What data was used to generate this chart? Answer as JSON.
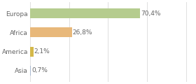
{
  "categories": [
    "Europa",
    "Africa",
    "America",
    "Asia"
  ],
  "values": [
    70.4,
    26.8,
    2.1,
    0.7
  ],
  "labels": [
    "70,4%",
    "26,8%",
    "2,1%",
    "0,7%"
  ],
  "bar_colors": [
    "#b5cc8e",
    "#e8b87a",
    "#d4b84a",
    "#a8b8d0"
  ],
  "background_color": "#ffffff",
  "plot_bg_color": "#ffffff",
  "grid_color": "#e0e0e0",
  "text_color": "#666666",
  "xlim": [
    0,
    105
  ],
  "label_fontsize": 6.5,
  "tick_fontsize": 6.5,
  "bar_height": 0.52
}
